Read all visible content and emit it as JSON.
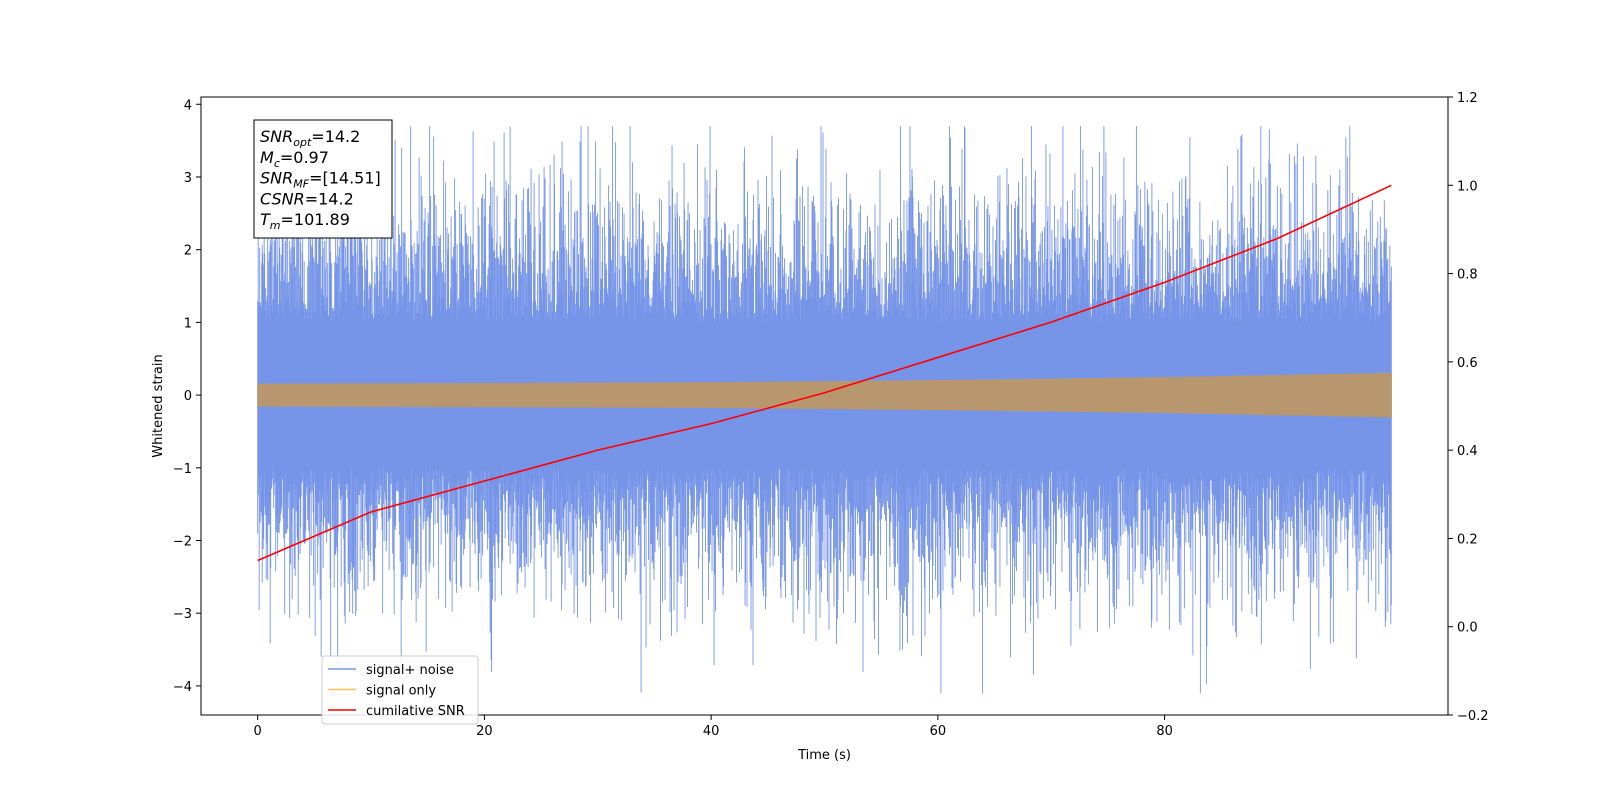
{
  "chart_data": {
    "type": "line",
    "xlabel": "Time (s)",
    "ylabel": "Whitened strain",
    "xlim": [
      -5,
      105
    ],
    "ylim": [
      -4.4,
      4.1
    ],
    "y2lim": [
      -0.2,
      1.2
    ],
    "xticks": [
      0,
      20,
      40,
      60,
      80
    ],
    "yticks": [
      -4,
      -3,
      -2,
      -1,
      0,
      1,
      2,
      3,
      4
    ],
    "y2ticks": [
      -0.2,
      0.0,
      0.2,
      0.4,
      0.6,
      0.8,
      1.0,
      1.2
    ],
    "x_range": [
      0,
      100
    ],
    "legend_position": "lower-left",
    "colors": {
      "signal_noise": "#7795e8",
      "signal_only": "#b8966e",
      "cumulative_snr": "#ff0000"
    },
    "series": [
      {
        "name": "signal+ noise",
        "color": "#7795e8",
        "description_envelope": {
          "x": [
            0,
            20,
            40,
            60,
            80,
            100
          ],
          "ymin": [
            -4.1,
            -4.1,
            -4.1,
            -4.1,
            -4.1,
            -4.1
          ],
          "ymax": [
            3.7,
            3.7,
            3.7,
            3.7,
            3.7,
            3.7
          ]
        }
      },
      {
        "name": "signal only",
        "color": "#b8966e",
        "amplitude": {
          "x": [
            0,
            20,
            40,
            60,
            80,
            100
          ],
          "y": [
            0.15,
            0.16,
            0.17,
            0.2,
            0.24,
            0.3
          ]
        }
      },
      {
        "name": "cumilative SNR",
        "axis": "right",
        "color": "#ff0000",
        "x": [
          0,
          10,
          20,
          30,
          40,
          50,
          60,
          70,
          80,
          90,
          100
        ],
        "y": [
          0.15,
          0.26,
          0.33,
          0.4,
          0.46,
          0.53,
          0.61,
          0.69,
          0.78,
          0.88,
          1.0
        ]
      }
    ],
    "annotation": {
      "lines": [
        {
          "base": "SNR",
          "sub": "opt",
          "value": "=14.2"
        },
        {
          "base": "M",
          "sub": "c",
          "value": "=0.97"
        },
        {
          "base": "SNR",
          "sub": "MF",
          "value": "=[14.51]"
        },
        {
          "base": "CSNR",
          "sub": "",
          "value": "=14.2"
        },
        {
          "base": "T",
          "sub": "m",
          "value": "=101.89"
        }
      ]
    }
  }
}
